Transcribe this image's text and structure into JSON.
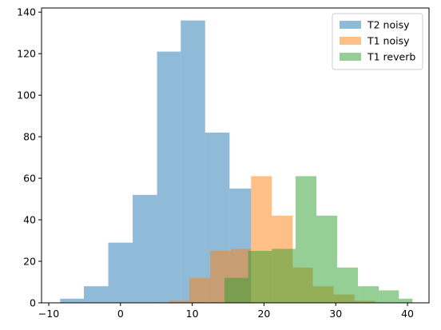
{
  "chart_data": {
    "type": "bar",
    "subtype": "histogram-overlay",
    "title": "",
    "xlabel": "",
    "ylabel": "",
    "xlim": [
      -11,
      43
    ],
    "ylim": [
      0,
      142
    ],
    "x_ticks": [
      -10,
      0,
      10,
      20,
      30,
      40
    ],
    "y_ticks": [
      0,
      20,
      40,
      60,
      80,
      100,
      120,
      140
    ],
    "grid": false,
    "legend_position": "top-right",
    "alpha": 0.5,
    "series": [
      {
        "name": "T2 noisy",
        "color": "#1f77b4",
        "bin_edges": [
          -8.4,
          -5.1,
          -1.7,
          1.7,
          5.1,
          8.4,
          11.8,
          15.2,
          18.2
        ],
        "counts": [
          2,
          8,
          29,
          52,
          121,
          136,
          82,
          55
        ]
      },
      {
        "name": "T1 noisy",
        "color": "#ff7f0e",
        "bin_edges": [
          6.7,
          9.6,
          12.5,
          15.4,
          18.2,
          21.1,
          24.0,
          26.8,
          29.7,
          32.6,
          35.5
        ],
        "counts": [
          1,
          12,
          25,
          26,
          61,
          42,
          17,
          8,
          4,
          1
        ]
      },
      {
        "name": "T1 reverb",
        "color": "#2ca02c",
        "bin_edges": [
          14.5,
          17.8,
          21.1,
          24.4,
          27.3,
          30.2,
          33.1,
          36.0,
          38.8,
          40.7
        ],
        "counts": [
          12,
          25,
          26,
          61,
          42,
          17,
          8,
          6,
          2
        ]
      }
    ]
  }
}
